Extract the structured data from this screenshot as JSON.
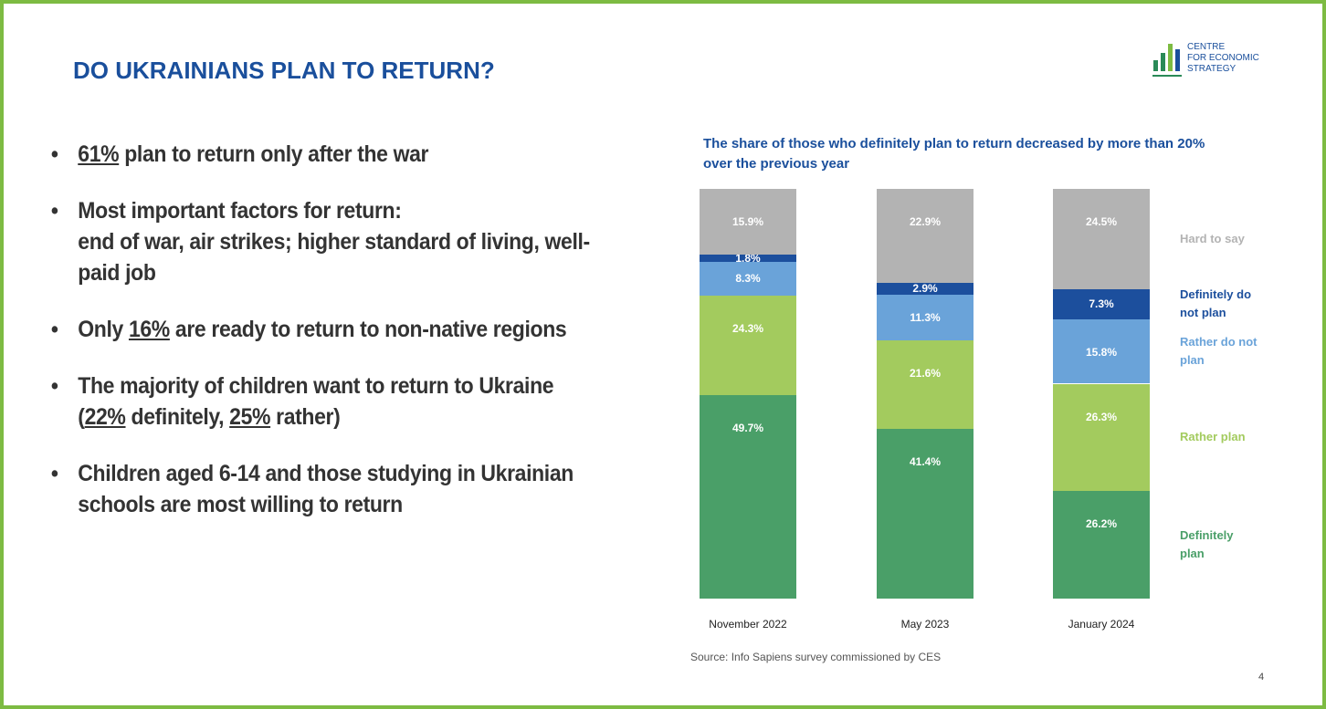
{
  "title": "DO UKRAINIANS PLAN TO RETURN?",
  "logo": [
    "CENTRE",
    "FOR ECONOMIC",
    "STRATEGY"
  ],
  "bullets": [
    [
      [
        {
          "text": "61%",
          "underline": true
        },
        {
          "text": " plan to return only after the war"
        }
      ]
    ],
    [
      [
        {
          "text": "Most important factors for return:"
        }
      ],
      [
        {
          "text": "end of war, air strikes; higher standard of living, well-paid job"
        }
      ]
    ],
    [
      [
        {
          "text": "Only "
        },
        {
          "text": "16%",
          "underline": true
        },
        {
          "text": " are ready to return to non-native regions"
        }
      ]
    ],
    [
      [
        {
          "text": "The majority of children want to return to Ukraine ("
        },
        {
          "text": "22%",
          "underline": true
        },
        {
          "text": " definitely, "
        },
        {
          "text": "25%",
          "underline": true
        },
        {
          "text": " rather)"
        }
      ]
    ],
    [
      [
        {
          "text": "Children aged 6-14 and those studying in Ukrainian schools are most willing to return"
        }
      ]
    ]
  ],
  "chart_data": {
    "type": "stacked_bar",
    "title": "The share of those who definitely plan to return decreased by more than 20% over the previous year",
    "categories": [
      "November 2022",
      "May 2023",
      "January 2024"
    ],
    "series": [
      {
        "name": "Definitely plan",
        "color": "#4a9f68",
        "values": [
          49.7,
          41.4,
          26.2
        ],
        "value_labels": [
          "49.7%",
          "41.4%",
          "26.2%"
        ]
      },
      {
        "name": "Rather plan",
        "color": "#a3cb5e",
        "values": [
          24.3,
          21.6,
          26.3
        ],
        "value_labels": [
          "24.3%",
          "21.6%",
          "26.3%"
        ]
      },
      {
        "name": "Rather do not plan",
        "color": "#6aa3d9",
        "values": [
          8.3,
          11.3,
          15.8
        ],
        "value_labels": [
          "8.3%",
          "11.3%",
          "15.8%"
        ]
      },
      {
        "name": "Definitely do not plan",
        "color": "#1c4f9d",
        "values": [
          1.8,
          2.9,
          7.3
        ],
        "value_labels": [
          "1.8%",
          "2.9%",
          "7.3%"
        ]
      },
      {
        "name": "Hard to say",
        "color": "#b3b3b3",
        "values": [
          15.9,
          22.9,
          24.5
        ],
        "value_labels": [
          "15.9%",
          "22.9%",
          "24.5%"
        ]
      }
    ],
    "source": "Source: Info Sapiens survey commissioned by CES"
  },
  "page_number": "4"
}
